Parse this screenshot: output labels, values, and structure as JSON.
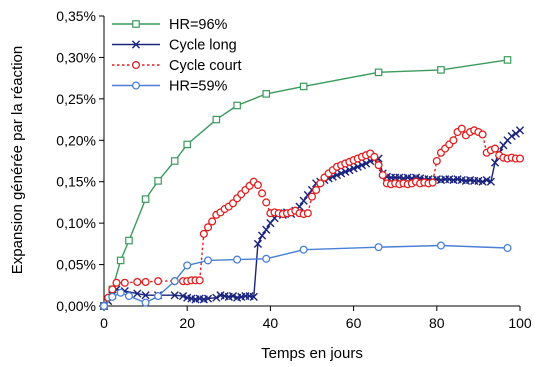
{
  "chart_data": {
    "type": "line",
    "xlabel": "Temps en jours",
    "ylabel": "Expansion générée par la réaction",
    "xlim": [
      0,
      100
    ],
    "ylim": [
      0,
      0.35
    ],
    "x_ticks": [
      0,
      20,
      40,
      60,
      80,
      100
    ],
    "x_tick_labels": [
      "0",
      "20",
      "40",
      "60",
      "80",
      "100"
    ],
    "y_ticks": [
      0,
      0.05,
      0.1,
      0.15,
      0.2,
      0.25,
      0.3,
      0.35
    ],
    "y_tick_labels": [
      "0,00%",
      "0,05%",
      "0,10%",
      "0,15%",
      "0,20%",
      "0,25%",
      "0,30%",
      "0,35%"
    ],
    "grid": false,
    "legend_position": "top-left",
    "series": [
      {
        "name": "HR=96%",
        "color": "#3a9a5b",
        "marker": "square",
        "line": "solid",
        "x": [
          0,
          2,
          4,
          6,
          10,
          13,
          17,
          20,
          27,
          32,
          39,
          48,
          66,
          81,
          97
        ],
        "y": [
          0.0,
          0.02,
          0.055,
          0.079,
          0.129,
          0.151,
          0.175,
          0.195,
          0.225,
          0.242,
          0.256,
          0.265,
          0.282,
          0.285,
          0.297
        ]
      },
      {
        "name": "Cycle long",
        "color": "#1a237e",
        "marker": "x",
        "line": "solid",
        "x": [
          0,
          1,
          2,
          3,
          5,
          8,
          10,
          13,
          17,
          19,
          20,
          21,
          22,
          23,
          24,
          25,
          27,
          28,
          29,
          30,
          31,
          32,
          33,
          34,
          35,
          36,
          37,
          38,
          39,
          40,
          41,
          42,
          43,
          44,
          45,
          46,
          47,
          48,
          49,
          50,
          51,
          52,
          53,
          54,
          55,
          56,
          57,
          58,
          59,
          60,
          61,
          62,
          63,
          64,
          65,
          66,
          67,
          68,
          69,
          70,
          71,
          72,
          73,
          74,
          75,
          76,
          77,
          78,
          79,
          80,
          81,
          82,
          83,
          84,
          85,
          86,
          87,
          88,
          89,
          90,
          91,
          92,
          93,
          94,
          95,
          96,
          97,
          98,
          99,
          100
        ],
        "y": [
          0.0,
          0.006,
          0.013,
          0.02,
          0.018,
          0.015,
          0.013,
          0.013,
          0.013,
          0.012,
          0.01,
          0.009,
          0.008,
          0.009,
          0.008,
          0.009,
          0.01,
          0.013,
          0.012,
          0.011,
          0.012,
          0.01,
          0.011,
          0.012,
          0.012,
          0.011,
          0.075,
          0.085,
          0.092,
          0.1,
          0.106,
          0.112,
          0.11,
          0.113,
          0.111,
          0.115,
          0.12,
          0.127,
          0.134,
          0.14,
          0.148,
          0.15,
          0.152,
          0.154,
          0.156,
          0.158,
          0.16,
          0.162,
          0.164,
          0.166,
          0.168,
          0.17,
          0.172,
          0.175,
          0.177,
          0.178,
          0.16,
          0.156,
          0.155,
          0.155,
          0.155,
          0.154,
          0.155,
          0.154,
          0.155,
          0.154,
          0.153,
          0.153,
          0.152,
          0.153,
          0.152,
          0.153,
          0.153,
          0.152,
          0.153,
          0.152,
          0.151,
          0.152,
          0.151,
          0.151,
          0.15,
          0.152,
          0.15,
          0.173,
          0.185,
          0.194,
          0.2,
          0.205,
          0.208,
          0.212
        ]
      },
      {
        "name": "Cycle court",
        "color": "#e02020",
        "marker": "circle",
        "line": "dotted",
        "x": [
          0,
          1,
          2,
          3,
          5,
          8,
          10,
          13,
          17,
          19,
          20,
          21,
          22,
          23,
          24,
          25,
          26,
          27,
          28,
          29,
          30,
          31,
          32,
          33,
          34,
          35,
          36,
          37,
          38,
          39,
          40,
          41,
          42,
          43,
          44,
          45,
          46,
          47,
          48,
          49,
          50,
          51,
          52,
          53,
          54,
          55,
          56,
          57,
          58,
          59,
          60,
          61,
          62,
          63,
          64,
          65,
          66,
          67,
          68,
          69,
          70,
          71,
          72,
          73,
          74,
          75,
          76,
          77,
          78,
          79,
          80,
          81,
          82,
          83,
          84,
          85,
          86,
          87,
          88,
          89,
          90,
          91,
          92,
          93,
          94,
          95,
          96,
          97,
          98,
          99,
          100
        ],
        "y": [
          0.0,
          0.01,
          0.02,
          0.028,
          0.028,
          0.029,
          0.029,
          0.03,
          0.03,
          0.03,
          0.03,
          0.031,
          0.031,
          0.031,
          0.087,
          0.095,
          0.102,
          0.11,
          0.113,
          0.117,
          0.12,
          0.124,
          0.13,
          0.135,
          0.14,
          0.145,
          0.15,
          0.146,
          0.136,
          0.125,
          0.112,
          0.113,
          0.112,
          0.111,
          0.112,
          0.113,
          0.115,
          0.112,
          0.111,
          0.112,
          0.132,
          0.14,
          0.148,
          0.155,
          0.16,
          0.164,
          0.168,
          0.17,
          0.172,
          0.174,
          0.176,
          0.178,
          0.18,
          0.182,
          0.184,
          0.18,
          0.17,
          0.158,
          0.148,
          0.147,
          0.148,
          0.147,
          0.148,
          0.147,
          0.148,
          0.15,
          0.148,
          0.149,
          0.148,
          0.149,
          0.175,
          0.185,
          0.19,
          0.195,
          0.2,
          0.21,
          0.214,
          0.206,
          0.21,
          0.212,
          0.21,
          0.207,
          0.185,
          0.188,
          0.19,
          0.182,
          0.179,
          0.178,
          0.179,
          0.178,
          0.178
        ]
      },
      {
        "name": "HR=59%",
        "color": "#4a7fd6",
        "marker": "circle",
        "line": "solid",
        "x": [
          0,
          2,
          4,
          6,
          10,
          13,
          17,
          20,
          25,
          32,
          39,
          48,
          66,
          81,
          97
        ],
        "y": [
          0.0,
          0.011,
          0.016,
          0.012,
          0.004,
          0.012,
          0.03,
          0.049,
          0.055,
          0.056,
          0.057,
          0.068,
          0.071,
          0.073,
          0.07
        ]
      }
    ]
  }
}
